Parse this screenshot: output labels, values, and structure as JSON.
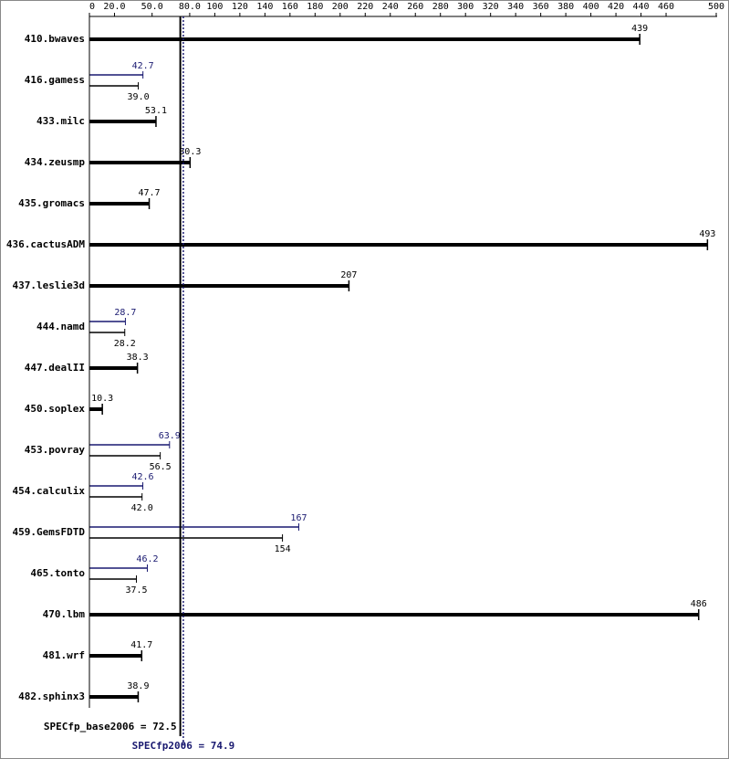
{
  "chart_data": {
    "type": "hbar",
    "categories": [
      "410.bwaves",
      "416.gamess",
      "433.milc",
      "434.zeusmp",
      "435.gromacs",
      "436.cactusADM",
      "437.leslie3d",
      "444.namd",
      "447.dealII",
      "450.soplex",
      "453.povray",
      "454.calculix",
      "459.GemsFDTD",
      "465.tonto",
      "470.lbm",
      "481.wrf",
      "482.sphinx3"
    ],
    "series": [
      {
        "color": "#000000",
        "values": [
          439,
          39.0,
          53.1,
          80.3,
          47.7,
          493,
          207,
          28.2,
          38.3,
          10.3,
          56.5,
          42.0,
          154,
          37.5,
          486,
          41.7,
          38.9
        ],
        "value_labels": [
          "439",
          "39.0",
          "53.1",
          "80.3",
          "47.7",
          "493",
          "207",
          "28.2",
          "38.3",
          "10.3",
          "56.5",
          "42.0",
          "154",
          "37.5",
          "486",
          "41.7",
          "38.9"
        ]
      },
      {
        "color": "#191970",
        "values": [
          null,
          42.7,
          null,
          null,
          null,
          null,
          null,
          28.7,
          null,
          null,
          63.9,
          42.6,
          167,
          46.2,
          null,
          null,
          null
        ]
      }
    ],
    "xlim": [
      0,
      500
    ],
    "xticks": [
      0,
      {
        "value": 20,
        "label": "20.0"
      },
      {
        "value": 50,
        "label": "50.0"
      },
      {
        "value": 80,
        "label": "80.0"
      },
      100,
      120,
      140,
      160,
      180,
      200,
      220,
      240,
      260,
      280,
      300,
      320,
      340,
      360,
      380,
      400,
      420,
      440,
      460,
      500
    ],
    "reference_lines": [
      {
        "label": "SPECfp_base2006 = 72.5",
        "value": 72.5,
        "color": "#000000",
        "dashed": false
      },
      {
        "label": "SPECfp2006 = 74.9",
        "value": 74.9,
        "color": "#191970",
        "dashed": true
      }
    ]
  }
}
